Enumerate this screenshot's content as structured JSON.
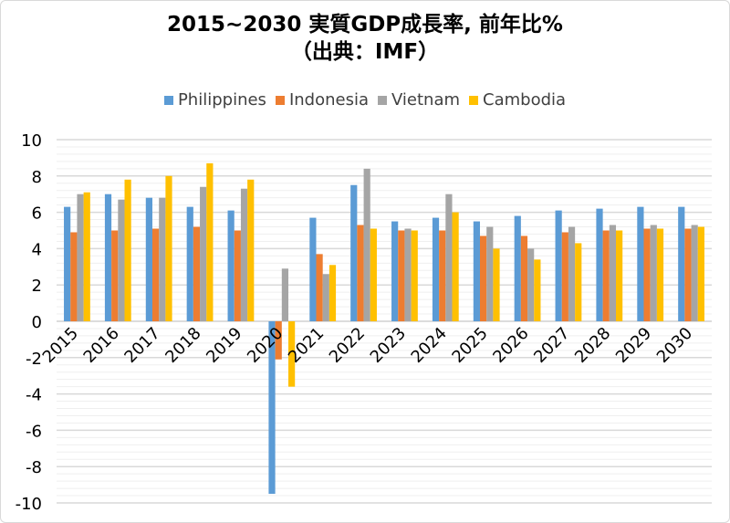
{
  "chart_data": {
    "type": "bar",
    "title_line1": "2015~2030 実質GDP成長率, 前年比%",
    "title_line2": "（出典：IMF）",
    "xlabel": "",
    "ylabel": "",
    "ylim": [
      -10,
      10
    ],
    "yticks": [
      10,
      8,
      6,
      4,
      2,
      0,
      -2,
      -4,
      -6,
      -8,
      -10
    ],
    "grid": true,
    "legend_position": "top",
    "categories": [
      "2015",
      "2016",
      "2017",
      "2018",
      "2019",
      "2020",
      "2021",
      "2022",
      "2023",
      "2024",
      "2025",
      "2026",
      "2027",
      "2028",
      "2029",
      "2030"
    ],
    "series": [
      {
        "name": "Philippines",
        "color": "#5b9bd5",
        "values": [
          6.3,
          7.0,
          6.8,
          6.3,
          6.1,
          -9.5,
          5.7,
          7.5,
          5.5,
          5.7,
          5.5,
          5.8,
          6.1,
          6.2,
          6.3,
          6.3
        ]
      },
      {
        "name": "Indonesia",
        "color": "#ed7d31",
        "values": [
          4.9,
          5.0,
          5.1,
          5.2,
          5.0,
          -2.1,
          3.7,
          5.3,
          5.0,
          5.0,
          4.7,
          4.7,
          4.9,
          5.0,
          5.1,
          5.1
        ]
      },
      {
        "name": "Vietnam",
        "color": "#a5a5a5",
        "values": [
          7.0,
          6.7,
          6.8,
          7.4,
          7.3,
          2.9,
          2.6,
          8.4,
          5.1,
          7.0,
          5.2,
          4.0,
          5.2,
          5.3,
          5.3,
          5.3
        ]
      },
      {
        "name": "Cambodia",
        "color": "#ffc000",
        "values": [
          7.1,
          7.8,
          8.0,
          8.7,
          7.8,
          -3.6,
          3.1,
          5.1,
          5.0,
          6.0,
          4.0,
          3.4,
          4.3,
          5.0,
          5.1,
          5.2
        ]
      }
    ]
  }
}
